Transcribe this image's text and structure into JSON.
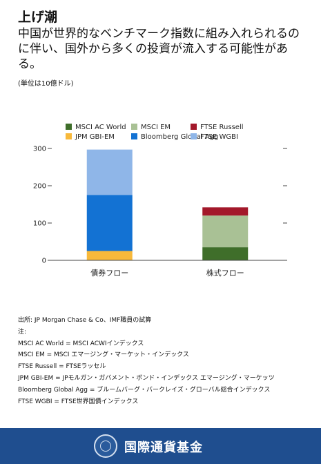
{
  "header": {
    "title": "上げ潮",
    "subtitle": "中国が世界的なベンチマーク指数に組み入れられるのに伴い、国外から多くの投資が流入する可能性がある。",
    "unit": "(単位は10億ドル)"
  },
  "chart_data": {
    "type": "bar",
    "stacked": true,
    "categories": [
      "債券フロー",
      "株式フロー"
    ],
    "ylim": [
      0,
      300
    ],
    "yticks": [
      "0",
      "100",
      "200",
      "300"
    ],
    "grid": false,
    "legend_position": "top",
    "series": [
      {
        "name": "MSCI AC World",
        "color": "#3f6e2a",
        "values": [
          0,
          35
        ]
      },
      {
        "name": "MSCI EM",
        "color": "#a9c195",
        "values": [
          0,
          85
        ]
      },
      {
        "name": "FTSE Russell",
        "color": "#a3182a",
        "values": [
          0,
          22
        ]
      },
      {
        "name": "JPM GBI-EM",
        "color": "#f8b93b",
        "values": [
          25,
          0
        ]
      },
      {
        "name": "Bloomberg Global Agg",
        "color": "#1372d3",
        "values": [
          150,
          0
        ]
      },
      {
        "name": "FTSE WGBI",
        "color": "#8fb6e8",
        "values": [
          122,
          0
        ]
      }
    ]
  },
  "notes": {
    "source": "出所: JP Morgan Chase & Co、IMF職員の試算",
    "label": "注:",
    "lines": [
      "MSCI AC World = MSCI ACWIインデックス",
      "MSCI EM =  MSCI エマージング・マーケット・インデックス",
      "FTSE Russell =    FTSEラッセル",
      "JPM GBI-EM = JPモルガン・ガバメント・ボンド・インデックス エマージング・マーケッツ",
      "Bloomberg Global Agg = ブルームバーグ・バークレイズ・グローバル総合インデックス",
      "FTSE WGBI = FTSE世界国債インデックス"
    ]
  },
  "footer": {
    "org_name": "国際通貨基金"
  }
}
